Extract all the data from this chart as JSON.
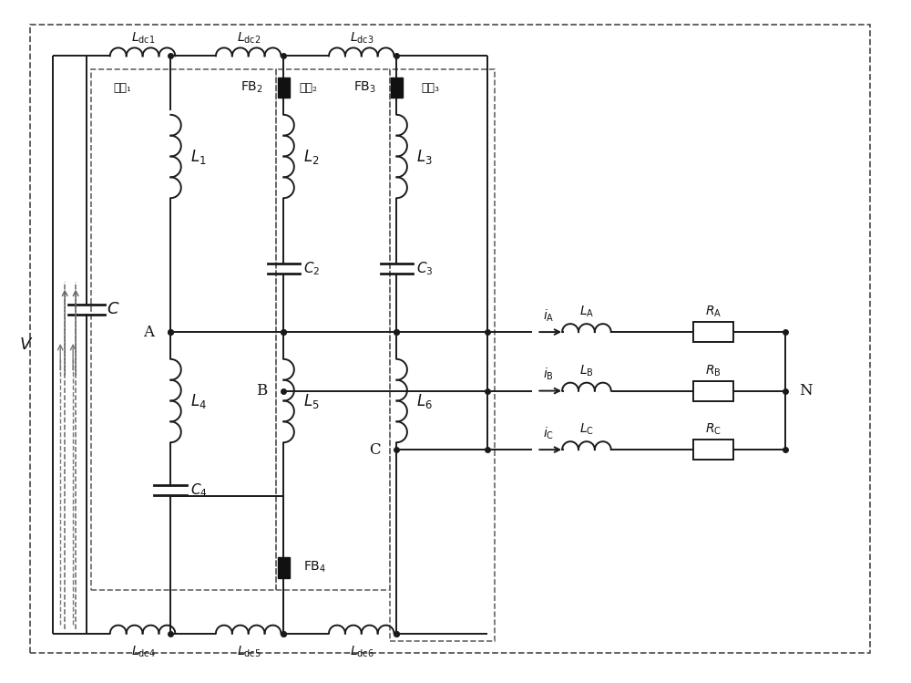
{
  "bg_color": "#ffffff",
  "line_color": "#1a1a1a",
  "figsize": [
    10.0,
    7.49
  ],
  "xlim": [
    0,
    10
  ],
  "ylim": [
    0,
    7.49
  ]
}
